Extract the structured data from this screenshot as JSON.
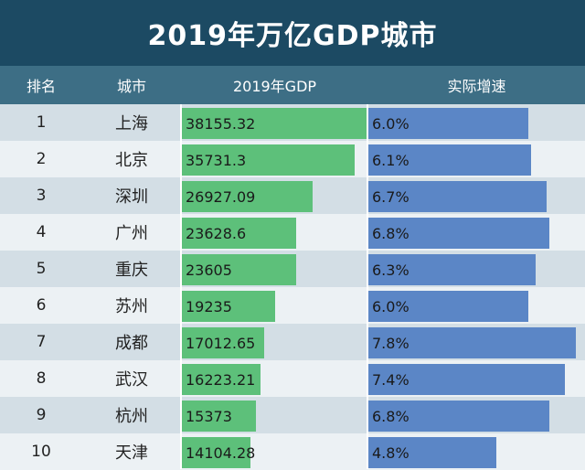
{
  "chart_data": {
    "type": "table",
    "title": "2019年万亿GDP城市",
    "columns": [
      "排名",
      "城市",
      "2019年GDP",
      "实际增速"
    ],
    "rows": [
      {
        "rank": "1",
        "city": "上海",
        "gdp": 38155.32,
        "gdp_label": "38155.32",
        "growth": 6.0,
        "growth_label": "6.0%"
      },
      {
        "rank": "2",
        "city": "北京",
        "gdp": 35731.3,
        "gdp_label": "35731.3",
        "growth": 6.1,
        "growth_label": "6.1%"
      },
      {
        "rank": "3",
        "city": "深圳",
        "gdp": 26927.09,
        "gdp_label": "26927.09",
        "growth": 6.7,
        "growth_label": "6.7%"
      },
      {
        "rank": "4",
        "city": "广州",
        "gdp": 23628.6,
        "gdp_label": "23628.6",
        "growth": 6.8,
        "growth_label": "6.8%"
      },
      {
        "rank": "5",
        "city": "重庆",
        "gdp": 23605,
        "gdp_label": "23605",
        "growth": 6.3,
        "growth_label": "6.3%"
      },
      {
        "rank": "6",
        "city": "苏州",
        "gdp": 19235,
        "gdp_label": "19235",
        "growth": 6.0,
        "growth_label": "6.0%"
      },
      {
        "rank": "7",
        "city": "成都",
        "gdp": 17012.65,
        "gdp_label": "17012.65",
        "growth": 7.8,
        "growth_label": "7.8%"
      },
      {
        "rank": "8",
        "city": "武汉",
        "gdp": 16223.21,
        "gdp_label": "16223.21",
        "growth": 7.4,
        "growth_label": "7.4%"
      },
      {
        "rank": "9",
        "city": "杭州",
        "gdp": 15373,
        "gdp_label": "15373",
        "growth": 6.8,
        "growth_label": "6.8%"
      },
      {
        "rank": "10",
        "city": "天津",
        "gdp": 14104.28,
        "gdp_label": "14104.28",
        "growth": 4.8,
        "growth_label": "4.8%"
      }
    ],
    "gdp_max": 38155.32,
    "growth_max": 7.8
  },
  "colors": {
    "title_bg": "#1c4a63",
    "header_bg": "#3d6e85",
    "gdp_bar": "#5dc07a",
    "growth_bar": "#5b86c6"
  }
}
